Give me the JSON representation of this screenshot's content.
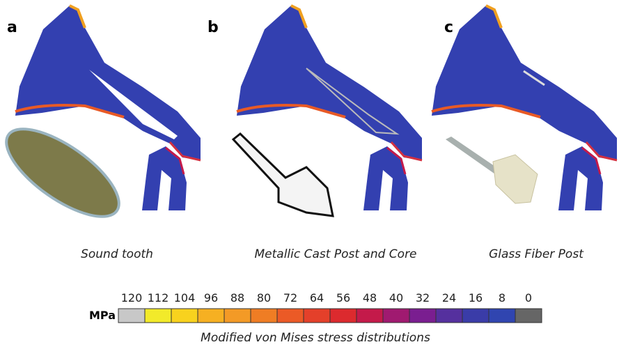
{
  "panels": [
    {
      "letter": "a",
      "caption": "Sound tooth"
    },
    {
      "letter": "b",
      "caption": "Metallic Cast Post and Core"
    },
    {
      "letter": "c",
      "caption": "Glass Fiber Post"
    }
  ],
  "scale": {
    "unit": "MPa",
    "labels": [
      120,
      112,
      104,
      96,
      88,
      80,
      72,
      64,
      56,
      48,
      40,
      32,
      24,
      16,
      8,
      0
    ],
    "colors": [
      "#c8c8c8",
      "#f2ea2a",
      "#f8d21e",
      "#f6b022",
      "#f39a26",
      "#ef7d24",
      "#eb5a26",
      "#e4402a",
      "#dc2a2e",
      "#c41a4a",
      "#a01a70",
      "#7a1e90",
      "#55309e",
      "#3a3ca8",
      "#3045b0",
      "#666666"
    ],
    "caption": "Modified von Mises stress distributions"
  }
}
